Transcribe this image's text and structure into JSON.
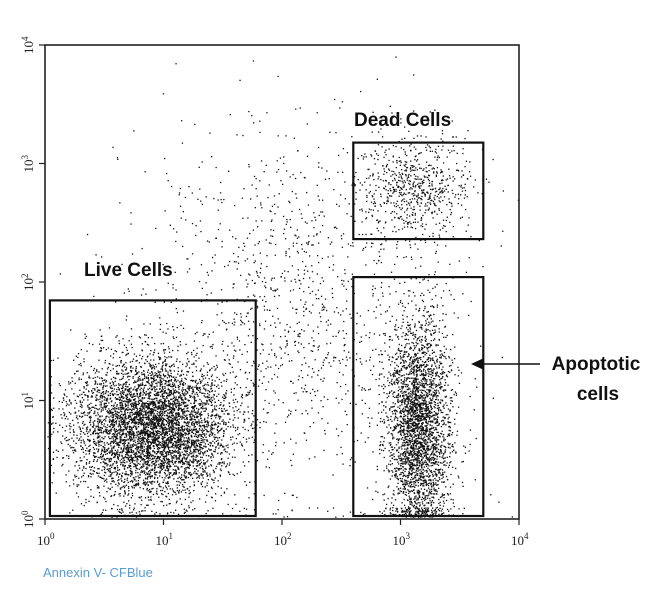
{
  "chart_data": {
    "type": "scatter",
    "title": "",
    "xlabel": "Annexin V- CFBlue",
    "ylabel": "",
    "x_scale": "log",
    "y_scale": "log",
    "xlim": [
      1,
      10000
    ],
    "ylim": [
      1,
      10000
    ],
    "x_ticks": [
      {
        "value": 1,
        "base": "10",
        "exp": "0"
      },
      {
        "value": 10,
        "base": "10",
        "exp": "1"
      },
      {
        "value": 100,
        "base": "10",
        "exp": "2"
      },
      {
        "value": 1000,
        "base": "10",
        "exp": "3"
      },
      {
        "value": 10000,
        "base": "10",
        "exp": "4"
      }
    ],
    "y_ticks": [
      {
        "value": 1,
        "base": "10",
        "exp": "0"
      },
      {
        "value": 10,
        "base": "10",
        "exp": "1"
      },
      {
        "value": 100,
        "base": "10",
        "exp": "2"
      },
      {
        "value": 1000,
        "base": "10",
        "exp": "3"
      },
      {
        "value": 10000,
        "base": "10",
        "exp": "4"
      }
    ],
    "grid": false,
    "marker_color": "#111111",
    "gates": [
      {
        "name": "live",
        "label": "Live Cells",
        "x_range": [
          1.1,
          60
        ],
        "y_range": [
          1,
          70
        ]
      },
      {
        "name": "apoptotic",
        "label": "Apoptotic cells",
        "label_lines": [
          "Apoptotic",
          "cells"
        ],
        "x_range": [
          400,
          5000
        ],
        "y_range": [
          1,
          110
        ]
      },
      {
        "name": "dead",
        "label": "Dead Cells",
        "x_range": [
          400,
          5000
        ],
        "y_range": [
          230,
          1500
        ]
      }
    ],
    "populations": [
      {
        "name": "live",
        "count": 5200,
        "center": [
          8,
          6
        ],
        "spread": [
          0.33,
          0.3
        ]
      },
      {
        "name": "apoptotic",
        "count": 3000,
        "center": [
          1400,
          6
        ],
        "spread": [
          0.13,
          0.45
        ]
      },
      {
        "name": "dead",
        "count": 650,
        "center": [
          1300,
          650
        ],
        "spread": [
          0.22,
          0.2
        ]
      },
      {
        "name": "background",
        "count": 1300,
        "center": [
          150,
          60
        ],
        "spread": [
          0.7,
          0.8
        ]
      }
    ]
  }
}
